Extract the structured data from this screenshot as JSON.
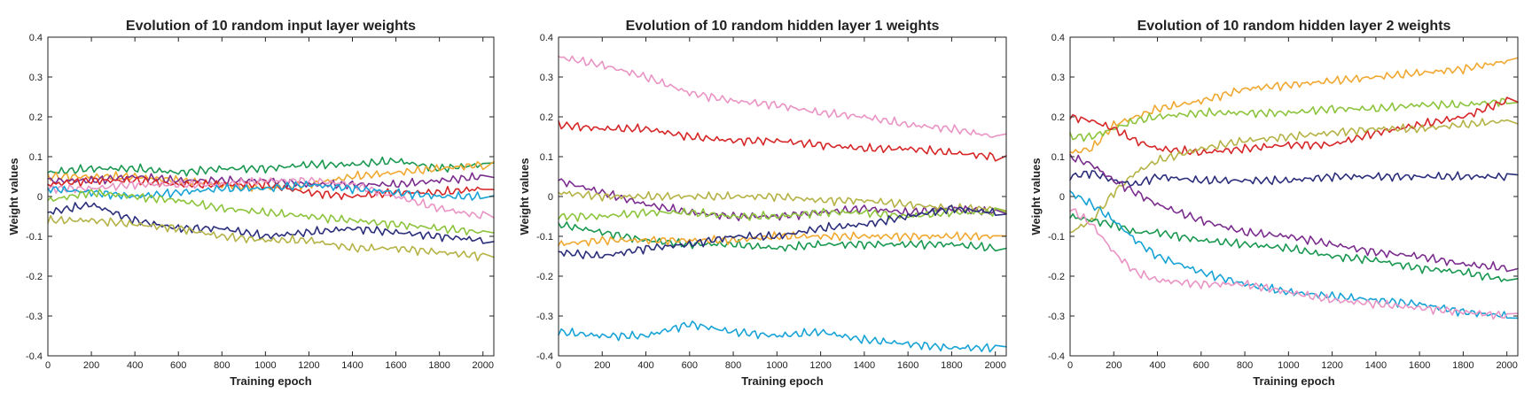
{
  "chart_data": [
    {
      "type": "line",
      "title": "Evolution of 10 random input layer weights",
      "xlabel": "Training epoch",
      "ylabel": "Weight values",
      "xlim": [
        0,
        2050
      ],
      "ylim": [
        -0.4,
        0.4
      ],
      "xticks": [
        0,
        200,
        400,
        600,
        800,
        1000,
        1200,
        1400,
        1600,
        1800,
        2000
      ],
      "yticks": [
        -0.4,
        -0.3,
        -0.2,
        -0.1,
        0,
        0.1,
        0.2,
        0.3,
        0.4
      ],
      "grid": false,
      "x": [
        0,
        200,
        400,
        600,
        800,
        1000,
        1200,
        1400,
        1600,
        1800,
        2000
      ],
      "series": [
        {
          "color": "#1a9850",
          "values": [
            0.06,
            0.07,
            0.07,
            0.06,
            0.07,
            0.07,
            0.08,
            0.08,
            0.09,
            0.07,
            0.08
          ]
        },
        {
          "color": "#f0a830",
          "values": [
            0.05,
            0.05,
            0.05,
            0.04,
            0.03,
            0.02,
            0.03,
            0.05,
            0.06,
            0.07,
            0.08
          ]
        },
        {
          "color": "#7b2d8e",
          "values": [
            0.04,
            0.04,
            0.05,
            0.04,
            0.04,
            0.04,
            0.03,
            0.03,
            0.03,
            0.04,
            0.05
          ]
        },
        {
          "color": "#d62728",
          "values": [
            0.03,
            0.04,
            0.04,
            0.03,
            0.03,
            0.03,
            0.01,
            0.0,
            0.01,
            0.01,
            0.02
          ]
        },
        {
          "color": "#e994c4",
          "values": [
            0.02,
            0.02,
            0.03,
            0.03,
            0.03,
            0.04,
            0.04,
            0.03,
            0.0,
            -0.03,
            -0.05
          ]
        },
        {
          "color": "#17a3d6",
          "values": [
            0.02,
            0.01,
            0.0,
            0.01,
            0.02,
            0.02,
            0.03,
            0.02,
            0.01,
            0.0,
            0.0
          ]
        },
        {
          "color": "#8cc43c",
          "values": [
            -0.01,
            0.01,
            0.0,
            -0.01,
            -0.03,
            -0.04,
            -0.05,
            -0.06,
            -0.07,
            -0.08,
            -0.09
          ]
        },
        {
          "color": "#2b2e7a",
          "values": [
            -0.04,
            -0.02,
            -0.06,
            -0.08,
            -0.08,
            -0.1,
            -0.09,
            -0.08,
            -0.09,
            -0.1,
            -0.11
          ]
        },
        {
          "color": "#b5b246",
          "values": [
            -0.06,
            -0.06,
            -0.07,
            -0.08,
            -0.1,
            -0.11,
            -0.11,
            -0.13,
            -0.13,
            -0.14,
            -0.15
          ]
        }
      ]
    },
    {
      "type": "line",
      "title": "Evolution of 10 random hidden layer 1 weights",
      "xlabel": "Training epoch",
      "ylabel": "Weight values",
      "xlim": [
        0,
        2050
      ],
      "ylim": [
        -0.4,
        0.4
      ],
      "xticks": [
        0,
        200,
        400,
        600,
        800,
        1000,
        1200,
        1400,
        1600,
        1800,
        2000
      ],
      "yticks": [
        -0.4,
        -0.3,
        -0.2,
        -0.1,
        0,
        0.1,
        0.2,
        0.3,
        0.4
      ],
      "grid": false,
      "x": [
        0,
        200,
        400,
        600,
        800,
        1000,
        1200,
        1400,
        1600,
        1800,
        2000
      ],
      "series": [
        {
          "color": "#e994c4",
          "values": [
            0.35,
            0.33,
            0.3,
            0.26,
            0.24,
            0.23,
            0.21,
            0.2,
            0.18,
            0.17,
            0.15
          ]
        },
        {
          "color": "#d62728",
          "values": [
            0.18,
            0.17,
            0.17,
            0.15,
            0.14,
            0.14,
            0.13,
            0.12,
            0.12,
            0.11,
            0.1
          ]
        },
        {
          "color": "#7b2d8e",
          "values": [
            0.04,
            0.01,
            -0.02,
            -0.04,
            -0.05,
            -0.05,
            -0.04,
            -0.03,
            -0.04,
            -0.03,
            -0.04
          ]
        },
        {
          "color": "#b5b246",
          "values": [
            0.01,
            0.0,
            0.0,
            0.0,
            0.0,
            0.0,
            -0.01,
            -0.01,
            -0.02,
            -0.03,
            -0.03
          ]
        },
        {
          "color": "#8cc43c",
          "values": [
            -0.05,
            -0.05,
            -0.04,
            -0.04,
            -0.05,
            -0.05,
            -0.04,
            -0.04,
            -0.05,
            -0.04,
            -0.04
          ]
        },
        {
          "color": "#1a9850",
          "values": [
            -0.07,
            -0.09,
            -0.11,
            -0.12,
            -0.12,
            -0.13,
            -0.12,
            -0.12,
            -0.12,
            -0.12,
            -0.13
          ]
        },
        {
          "color": "#f0a830",
          "values": [
            -0.12,
            -0.11,
            -0.11,
            -0.11,
            -0.11,
            -0.1,
            -0.1,
            -0.1,
            -0.1,
            -0.1,
            -0.1
          ]
        },
        {
          "color": "#2b2e7a",
          "values": [
            -0.14,
            -0.15,
            -0.13,
            -0.12,
            -0.1,
            -0.1,
            -0.08,
            -0.07,
            -0.05,
            -0.03,
            -0.04
          ]
        },
        {
          "color": "#17a3d6",
          "values": [
            -0.34,
            -0.35,
            -0.35,
            -0.32,
            -0.34,
            -0.35,
            -0.34,
            -0.36,
            -0.37,
            -0.38,
            -0.38
          ]
        }
      ]
    },
    {
      "type": "line",
      "title": "Evolution of 10 random hidden layer 2 weights",
      "xlabel": "Training epoch",
      "ylabel": "Weight values",
      "xlim": [
        0,
        2050
      ],
      "ylim": [
        -0.4,
        0.4
      ],
      "xticks": [
        0,
        200,
        400,
        600,
        800,
        1000,
        1200,
        1400,
        1600,
        1800,
        2000
      ],
      "yticks": [
        -0.4,
        -0.3,
        -0.2,
        -0.1,
        0,
        0.1,
        0.2,
        0.3,
        0.4
      ],
      "grid": false,
      "x": [
        0,
        100,
        200,
        300,
        400,
        600,
        800,
        1000,
        1200,
        1400,
        1600,
        1800,
        2000
      ],
      "series": [
        {
          "color": "#f0a830",
          "values": [
            0.11,
            0.12,
            0.18,
            0.2,
            0.22,
            0.24,
            0.27,
            0.28,
            0.29,
            0.3,
            0.31,
            0.32,
            0.34
          ]
        },
        {
          "color": "#8cc43c",
          "values": [
            0.15,
            0.15,
            0.17,
            0.19,
            0.2,
            0.21,
            0.21,
            0.21,
            0.22,
            0.22,
            0.23,
            0.23,
            0.24
          ]
        },
        {
          "color": "#d62728",
          "values": [
            0.2,
            0.19,
            0.17,
            0.14,
            0.12,
            0.11,
            0.12,
            0.13,
            0.13,
            0.16,
            0.18,
            0.2,
            0.24
          ]
        },
        {
          "color": "#b5b246",
          "values": [
            -0.09,
            -0.06,
            0.01,
            0.06,
            0.09,
            0.12,
            0.14,
            0.15,
            0.16,
            0.17,
            0.17,
            0.18,
            0.19
          ]
        },
        {
          "color": "#2b2e7a",
          "values": [
            0.05,
            0.06,
            0.04,
            0.03,
            0.05,
            0.04,
            0.04,
            0.04,
            0.05,
            0.05,
            0.05,
            0.05,
            0.05
          ]
        },
        {
          "color": "#7b2d8e",
          "values": [
            0.1,
            0.08,
            0.04,
            0.01,
            -0.02,
            -0.06,
            -0.09,
            -0.1,
            -0.12,
            -0.14,
            -0.15,
            -0.17,
            -0.18
          ]
        },
        {
          "color": "#1a9850",
          "values": [
            -0.05,
            -0.06,
            -0.07,
            -0.09,
            -0.09,
            -0.11,
            -0.12,
            -0.13,
            -0.15,
            -0.16,
            -0.18,
            -0.19,
            -0.21
          ]
        },
        {
          "color": "#17a3d6",
          "values": [
            0.01,
            -0.02,
            -0.06,
            -0.11,
            -0.15,
            -0.19,
            -0.22,
            -0.24,
            -0.25,
            -0.26,
            -0.27,
            -0.29,
            -0.3
          ]
        },
        {
          "color": "#e994c4",
          "values": [
            -0.03,
            -0.07,
            -0.14,
            -0.19,
            -0.21,
            -0.22,
            -0.22,
            -0.24,
            -0.26,
            -0.27,
            -0.28,
            -0.29,
            -0.3
          ]
        }
      ]
    }
  ]
}
